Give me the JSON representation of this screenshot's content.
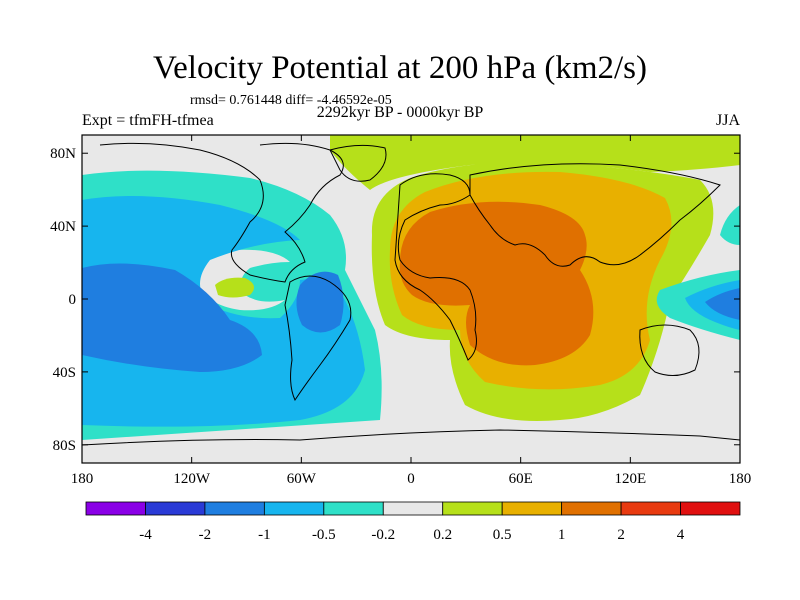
{
  "header": {
    "title": "Velocity Potential at 200 hPa (km2/s)",
    "stats": "rmsd= 0.761448 diff= -4.46592e-05",
    "experiment": "Expt = tfmFH-tfmea",
    "period": "2292kyr BP - 0000kyr BP",
    "season": "JJA"
  },
  "map": {
    "lat_labels": [
      "80N",
      "40N",
      "0",
      "40S",
      "80S"
    ],
    "lat_values": [
      80,
      40,
      0,
      -40,
      -80
    ],
    "lon_labels": [
      "180",
      "120W",
      "60W",
      "0",
      "60E",
      "120E",
      "180"
    ],
    "lon_values": [
      -180,
      -120,
      -60,
      0,
      60,
      120,
      180
    ],
    "lon_range": [
      -180,
      180
    ],
    "lat_range": [
      -90,
      90
    ]
  },
  "colorbar": {
    "colors": [
      "#8a00e6",
      "#2a3ad6",
      "#1f7ee0",
      "#17b5ee",
      "#2fe0c8",
      "#e8e8e8",
      "#b6e01a",
      "#e8b000",
      "#e07000",
      "#e83a10",
      "#e01010"
    ],
    "labels": [
      "-4",
      "-2",
      "-1",
      "-0.5",
      "-0.2",
      "0.2",
      "0.5",
      "1",
      "2",
      "4"
    ]
  }
}
